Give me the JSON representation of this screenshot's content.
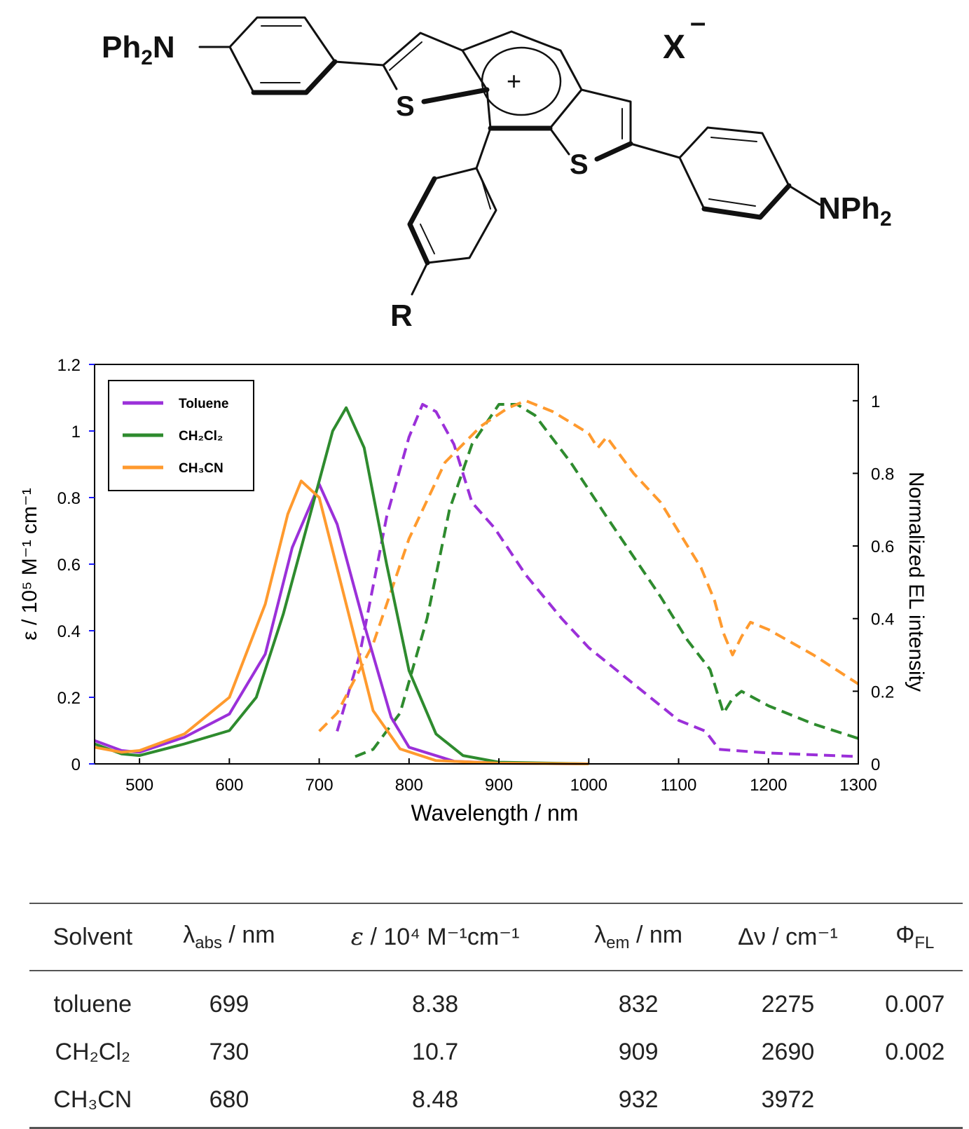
{
  "structure": {
    "labels": {
      "ph2n_left": "Ph2N",
      "nph2_right": "NPh2",
      "s_left": "S",
      "s_right": "S",
      "r_group": "R",
      "plus": "+",
      "counterion": "X",
      "counterion_charge": "–"
    }
  },
  "chart_data": {
    "type": "line",
    "xlabel": "Wavelength / nm",
    "ylabel_left": "ε / 10⁵ M⁻¹ cm⁻¹",
    "ylabel_right": "Normalized EL intensity",
    "xlim": [
      450,
      1300
    ],
    "ylim_left": [
      0,
      1.2
    ],
    "ylim_right": [
      0,
      1.1
    ],
    "x_ticks": [
      500,
      600,
      700,
      800,
      900,
      1000,
      1100,
      1200,
      1300
    ],
    "y_ticks_left": [
      "0",
      "0.2",
      "0.4",
      "0.6",
      "0.8",
      "1",
      "1.2"
    ],
    "y_ticks_right": [
      "0",
      "0.2",
      "0.4",
      "0.6",
      "0.8",
      "1"
    ],
    "legend": {
      "position": "top-left",
      "entries": [
        {
          "label": "Toluene",
          "color": "#9b30d9"
        },
        {
          "label": "CH₂Cl₂",
          "color": "#2e8b2e"
        },
        {
          "label": "CH₃CN",
          "color": "#ff9a2e"
        }
      ]
    },
    "absorption_series": [
      {
        "name": "Toluene",
        "color": "#9b30d9",
        "axis": "left",
        "style": "solid",
        "points": [
          [
            450,
            0.07
          ],
          [
            480,
            0.04
          ],
          [
            500,
            0.035
          ],
          [
            550,
            0.08
          ],
          [
            600,
            0.15
          ],
          [
            640,
            0.33
          ],
          [
            670,
            0.65
          ],
          [
            700,
            0.84
          ],
          [
            720,
            0.72
          ],
          [
            750,
            0.42
          ],
          [
            780,
            0.14
          ],
          [
            800,
            0.05
          ],
          [
            850,
            0.008
          ],
          [
            900,
            0.002
          ],
          [
            1000,
            0
          ]
        ]
      },
      {
        "name": "CH₂Cl₂",
        "color": "#2e8b2e",
        "axis": "left",
        "style": "solid",
        "points": [
          [
            450,
            0.06
          ],
          [
            480,
            0.03
          ],
          [
            500,
            0.025
          ],
          [
            550,
            0.06
          ],
          [
            600,
            0.1
          ],
          [
            630,
            0.2
          ],
          [
            660,
            0.45
          ],
          [
            690,
            0.75
          ],
          [
            715,
            1.0
          ],
          [
            730,
            1.07
          ],
          [
            750,
            0.95
          ],
          [
            775,
            0.6
          ],
          [
            800,
            0.28
          ],
          [
            830,
            0.09
          ],
          [
            860,
            0.025
          ],
          [
            900,
            0.005
          ],
          [
            1000,
            0
          ]
        ]
      },
      {
        "name": "CH₃CN",
        "color": "#ff9a2e",
        "axis": "left",
        "style": "solid",
        "points": [
          [
            450,
            0.05
          ],
          [
            480,
            0.035
          ],
          [
            500,
            0.04
          ],
          [
            550,
            0.09
          ],
          [
            600,
            0.2
          ],
          [
            640,
            0.48
          ],
          [
            665,
            0.75
          ],
          [
            680,
            0.85
          ],
          [
            700,
            0.8
          ],
          [
            730,
            0.48
          ],
          [
            760,
            0.16
          ],
          [
            790,
            0.045
          ],
          [
            830,
            0.01
          ],
          [
            900,
            0.002
          ],
          [
            1000,
            0
          ]
        ]
      }
    ],
    "emission_series": [
      {
        "name": "Toluene",
        "color": "#9b30d9",
        "axis": "right",
        "style": "dashed",
        "points": [
          [
            720,
            0.09
          ],
          [
            745,
            0.3
          ],
          [
            775,
            0.68
          ],
          [
            800,
            0.9
          ],
          [
            815,
            0.99
          ],
          [
            830,
            0.97
          ],
          [
            850,
            0.88
          ],
          [
            870,
            0.72
          ],
          [
            895,
            0.65
          ],
          [
            930,
            0.52
          ],
          [
            970,
            0.4
          ],
          [
            1000,
            0.32
          ],
          [
            1050,
            0.22
          ],
          [
            1100,
            0.12
          ],
          [
            1130,
            0.09
          ],
          [
            1145,
            0.04
          ],
          [
            1200,
            0.03
          ],
          [
            1300,
            0.02
          ]
        ]
      },
      {
        "name": "CH₂Cl₂",
        "color": "#2e8b2e",
        "axis": "right",
        "style": "dashed",
        "points": [
          [
            740,
            0.02
          ],
          [
            760,
            0.04
          ],
          [
            790,
            0.14
          ],
          [
            820,
            0.4
          ],
          [
            845,
            0.7
          ],
          [
            870,
            0.88
          ],
          [
            900,
            0.99
          ],
          [
            920,
            0.99
          ],
          [
            940,
            0.96
          ],
          [
            980,
            0.83
          ],
          [
            1020,
            0.68
          ],
          [
            1050,
            0.57
          ],
          [
            1080,
            0.46
          ],
          [
            1110,
            0.34
          ],
          [
            1135,
            0.26
          ],
          [
            1150,
            0.14
          ],
          [
            1160,
            0.18
          ],
          [
            1170,
            0.2
          ],
          [
            1200,
            0.16
          ],
          [
            1250,
            0.11
          ],
          [
            1300,
            0.07
          ]
        ]
      },
      {
        "name": "CH₃CN",
        "color": "#ff9a2e",
        "axis": "right",
        "style": "dashed",
        "points": [
          [
            700,
            0.09
          ],
          [
            720,
            0.14
          ],
          [
            760,
            0.33
          ],
          [
            800,
            0.62
          ],
          [
            840,
            0.83
          ],
          [
            880,
            0.93
          ],
          [
            910,
            0.98
          ],
          [
            930,
            1.0
          ],
          [
            960,
            0.97
          ],
          [
            1000,
            0.91
          ],
          [
            1010,
            0.87
          ],
          [
            1020,
            0.9
          ],
          [
            1050,
            0.8
          ],
          [
            1080,
            0.72
          ],
          [
            1100,
            0.64
          ],
          [
            1125,
            0.54
          ],
          [
            1140,
            0.45
          ],
          [
            1150,
            0.36
          ],
          [
            1160,
            0.3
          ],
          [
            1170,
            0.35
          ],
          [
            1180,
            0.39
          ],
          [
            1200,
            0.37
          ],
          [
            1250,
            0.3
          ],
          [
            1300,
            0.22
          ]
        ]
      }
    ]
  },
  "table": {
    "headers": [
      {
        "main": "Solvent",
        "sub": "",
        "rest": ""
      },
      {
        "main": "λ",
        "sub": "abs",
        "rest": " / nm"
      },
      {
        "main": "ε",
        "sub": "",
        "rest": " / 10⁴ M⁻¹cm⁻¹"
      },
      {
        "main": "λ",
        "sub": "em",
        "rest": " / nm"
      },
      {
        "main": "Δν / cm⁻¹",
        "sub": "",
        "rest": ""
      },
      {
        "main": "Φ",
        "sub": "FL",
        "rest": ""
      }
    ],
    "rows": [
      {
        "solvent": "toluene",
        "abs": "699",
        "eps": "8.38",
        "em": "832",
        "dnu": "2275",
        "phi": "0.007"
      },
      {
        "solvent": "CH₂Cl₂",
        "abs": "730",
        "eps": "10.7",
        "em": "909",
        "dnu": "2690",
        "phi": "0.002"
      },
      {
        "solvent": "CH₃CN",
        "abs": "680",
        "eps": "8.48",
        "em": "932",
        "dnu": "3972",
        "phi": ""
      }
    ]
  }
}
